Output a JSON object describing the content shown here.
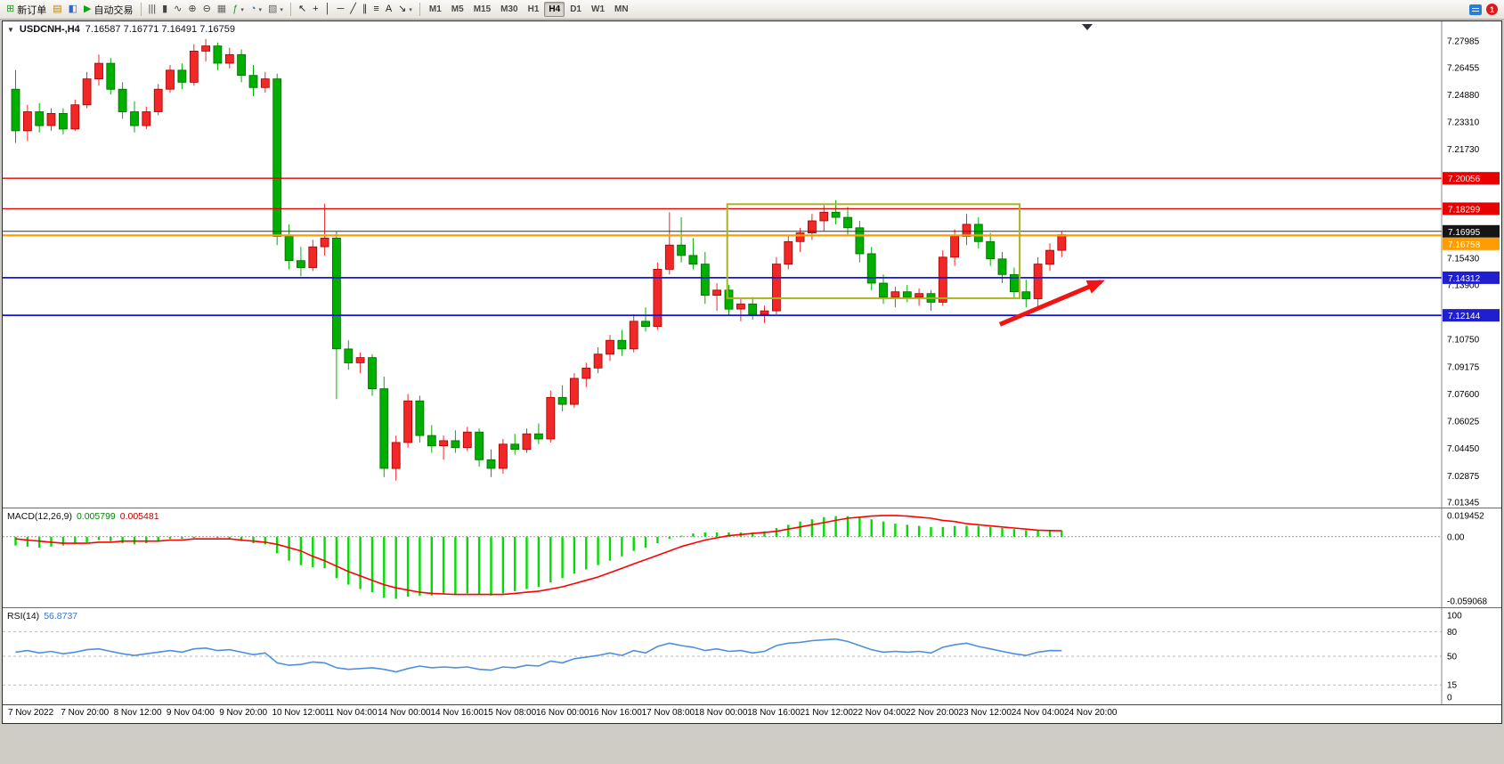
{
  "toolbar": {
    "dropdown_glyph": "▾",
    "buttons_left": [
      {
        "name": "new-order-button",
        "glyph": "⊞",
        "glyph_color": "#1f9d1f",
        "label": "新订单"
      },
      {
        "name": "market-watch-button",
        "glyph": "▤",
        "glyph_color": "#b8860b"
      },
      {
        "name": "data-window-button",
        "glyph": "◧",
        "glyph_color": "#2f66c4"
      },
      {
        "name": "autotrading-button",
        "glyph": "▶",
        "glyph_color": "#17a017",
        "label": "自动交易"
      }
    ],
    "chart_buttons": [
      {
        "name": "bar-chart-button",
        "glyph": "|||",
        "glyph_color": "#444"
      },
      {
        "name": "candlestick-chart-button",
        "glyph": "▮",
        "glyph_color": "#444"
      },
      {
        "name": "line-chart-button",
        "glyph": "∿",
        "glyph_color": "#444"
      },
      {
        "name": "zoom-in-button",
        "glyph": "⊕",
        "glyph_color": "#444"
      },
      {
        "name": "zoom-out-button",
        "glyph": "⊖",
        "glyph_color": "#444"
      },
      {
        "name": "tile-windows-button",
        "glyph": "▦",
        "glyph_color": "#666"
      },
      {
        "name": "indicators-button",
        "glyph": "ƒ",
        "glyph_color": "#1f9d1f",
        "dropdown": true
      },
      {
        "name": "periods-button",
        "glyph": "◔",
        "glyph_color": "#2f66c4",
        "dropdown": true
      },
      {
        "name": "templates-button",
        "glyph": "▧",
        "glyph_color": "#666",
        "dropdown": true
      }
    ],
    "line_tool_buttons": [
      {
        "name": "cursor-button",
        "glyph": "↖",
        "glyph_color": "#222"
      },
      {
        "name": "crosshair-button",
        "glyph": "+",
        "glyph_color": "#222"
      },
      {
        "name": "vertical-line-button",
        "glyph": "│",
        "glyph_color": "#222"
      },
      {
        "name": "horizontal-line-button",
        "glyph": "─",
        "glyph_color": "#222"
      },
      {
        "name": "trendline-button",
        "glyph": "╱",
        "glyph_color": "#222"
      },
      {
        "name": "channel-button",
        "glyph": "∥",
        "glyph_color": "#222"
      },
      {
        "name": "fibonacci-button",
        "glyph": "≡",
        "glyph_color": "#222"
      },
      {
        "name": "text-button",
        "glyph": "A",
        "glyph_color": "#222"
      },
      {
        "name": "arrows-button",
        "glyph": "↘",
        "glyph_color": "#222",
        "dropdown": true
      }
    ],
    "timeframes": {
      "items": [
        "M1",
        "M5",
        "M15",
        "M30",
        "H1",
        "H4",
        "D1",
        "W1",
        "MN"
      ],
      "active": "H4"
    },
    "notifications": {
      "count": "1"
    }
  },
  "chart_data": {
    "type": "candlestick",
    "symbol": "USDCNH-",
    "timeframe": "H4",
    "title": {
      "collapse_icon": "▼",
      "symbol": "USDCNH-,H4",
      "ohlc": "7.16587 7.16771 7.16491 7.16759"
    },
    "colors": {
      "up": "#f22727",
      "up_dark": "#a30000",
      "down": "#00b000",
      "down_dark": "#006a00",
      "macd_hist": "#00dd00",
      "macd_signal": "#ff0000",
      "rsi": "#4f8fdd"
    },
    "price_axis_labels": [
      7.27985,
      7.26455,
      7.2488,
      7.2331,
      7.2173,
      7.1543,
      7.139,
      7.1075,
      7.09175,
      7.076,
      7.06025,
      7.0445,
      7.02875,
      7.01345
    ],
    "candles": [
      [
        7.252,
        7.263,
        7.221,
        7.228
      ],
      [
        7.228,
        7.243,
        7.222,
        7.239
      ],
      [
        7.239,
        7.244,
        7.227,
        7.231
      ],
      [
        7.231,
        7.241,
        7.228,
        7.238
      ],
      [
        7.238,
        7.241,
        7.226,
        7.229
      ],
      [
        7.229,
        7.246,
        7.228,
        7.243
      ],
      [
        7.243,
        7.262,
        7.241,
        7.258
      ],
      [
        7.258,
        7.272,
        7.254,
        7.267
      ],
      [
        7.267,
        7.27,
        7.249,
        7.252
      ],
      [
        7.252,
        7.256,
        7.235,
        7.239
      ],
      [
        7.239,
        7.245,
        7.227,
        7.231
      ],
      [
        7.231,
        7.242,
        7.229,
        7.239
      ],
      [
        7.239,
        7.255,
        7.237,
        7.252
      ],
      [
        7.252,
        7.266,
        7.25,
        7.263
      ],
      [
        7.263,
        7.267,
        7.252,
        7.256
      ],
      [
        7.256,
        7.278,
        7.254,
        7.274
      ],
      [
        7.274,
        7.281,
        7.268,
        7.277
      ],
      [
        7.277,
        7.279,
        7.263,
        7.267
      ],
      [
        7.267,
        7.276,
        7.264,
        7.272
      ],
      [
        7.272,
        7.275,
        7.256,
        7.26
      ],
      [
        7.26,
        7.266,
        7.248,
        7.253
      ],
      [
        7.253,
        7.262,
        7.25,
        7.258
      ],
      [
        7.258,
        7.261,
        7.162,
        7.167
      ],
      [
        7.167,
        7.174,
        7.148,
        7.153
      ],
      [
        7.153,
        7.161,
        7.144,
        7.149
      ],
      [
        7.149,
        7.165,
        7.147,
        7.161
      ],
      [
        7.161,
        7.186,
        7.156,
        7.166
      ],
      [
        7.166,
        7.17,
        7.073,
        7.102
      ],
      [
        7.102,
        7.107,
        7.09,
        7.094
      ],
      [
        7.094,
        7.1,
        7.088,
        7.097
      ],
      [
        7.097,
        7.099,
        7.075,
        7.079
      ],
      [
        7.079,
        7.086,
        7.028,
        7.033
      ],
      [
        7.033,
        7.052,
        7.026,
        7.048
      ],
      [
        7.048,
        7.076,
        7.045,
        7.072
      ],
      [
        7.072,
        7.075,
        7.048,
        7.052
      ],
      [
        7.052,
        7.058,
        7.042,
        7.046
      ],
      [
        7.046,
        7.052,
        7.038,
        7.049
      ],
      [
        7.049,
        7.055,
        7.042,
        7.045
      ],
      [
        7.045,
        7.057,
        7.043,
        7.054
      ],
      [
        7.054,
        7.056,
        7.034,
        7.038
      ],
      [
        7.038,
        7.044,
        7.028,
        7.033
      ],
      [
        7.033,
        7.05,
        7.03,
        7.047
      ],
      [
        7.047,
        7.053,
        7.041,
        7.044
      ],
      [
        7.044,
        7.056,
        7.042,
        7.053
      ],
      [
        7.053,
        7.059,
        7.047,
        7.05
      ],
      [
        7.05,
        7.078,
        7.048,
        7.074
      ],
      [
        7.074,
        7.081,
        7.066,
        7.07
      ],
      [
        7.07,
        7.088,
        7.068,
        7.085
      ],
      [
        7.085,
        7.094,
        7.08,
        7.091
      ],
      [
        7.091,
        7.103,
        7.088,
        7.099
      ],
      [
        7.099,
        7.11,
        7.095,
        7.107
      ],
      [
        7.107,
        7.113,
        7.098,
        7.102
      ],
      [
        7.102,
        7.122,
        7.1,
        7.118
      ],
      [
        7.118,
        7.126,
        7.112,
        7.115
      ],
      [
        7.115,
        7.152,
        7.113,
        7.148
      ],
      [
        7.148,
        7.181,
        7.145,
        7.162
      ],
      [
        7.162,
        7.178,
        7.152,
        7.156
      ],
      [
        7.156,
        7.166,
        7.148,
        7.151
      ],
      [
        7.151,
        7.158,
        7.128,
        7.133
      ],
      [
        7.133,
        7.14,
        7.124,
        7.136
      ],
      [
        7.136,
        7.139,
        7.121,
        7.125
      ],
      [
        7.125,
        7.131,
        7.118,
        7.128
      ],
      [
        7.128,
        7.132,
        7.119,
        7.122
      ],
      [
        7.122,
        7.127,
        7.117,
        7.124
      ],
      [
        7.124,
        7.155,
        7.122,
        7.151
      ],
      [
        7.151,
        7.168,
        7.148,
        7.164
      ],
      [
        7.164,
        7.172,
        7.158,
        7.169
      ],
      [
        7.169,
        7.18,
        7.165,
        7.176
      ],
      [
        7.176,
        7.185,
        7.17,
        7.181
      ],
      [
        7.181,
        7.188,
        7.174,
        7.178
      ],
      [
        7.178,
        7.184,
        7.168,
        7.172
      ],
      [
        7.172,
        7.176,
        7.152,
        7.157
      ],
      [
        7.157,
        7.161,
        7.136,
        7.14
      ],
      [
        7.14,
        7.145,
        7.128,
        7.132
      ],
      [
        7.132,
        7.138,
        7.126,
        7.135
      ],
      [
        7.135,
        7.139,
        7.129,
        7.132
      ],
      [
        7.132,
        7.137,
        7.127,
        7.134
      ],
      [
        7.134,
        7.136,
        7.124,
        7.129
      ],
      [
        7.129,
        7.159,
        7.127,
        7.155
      ],
      [
        7.155,
        7.171,
        7.15,
        7.167
      ],
      [
        7.167,
        7.18,
        7.162,
        7.174
      ],
      [
        7.174,
        7.178,
        7.16,
        7.164
      ],
      [
        7.164,
        7.169,
        7.15,
        7.154
      ],
      [
        7.154,
        7.158,
        7.14,
        7.145
      ],
      [
        7.145,
        7.149,
        7.131,
        7.135
      ],
      [
        7.135,
        7.142,
        7.126,
        7.131
      ],
      [
        7.131,
        7.155,
        7.125,
        7.151
      ],
      [
        7.151,
        7.163,
        7.147,
        7.159
      ],
      [
        7.159,
        7.17,
        7.155,
        7.168
      ]
    ],
    "hlines": [
      {
        "price": 7.20056,
        "label": "7.20056",
        "color": "#e80000",
        "badge_bg": "#e80000",
        "width": 1.3
      },
      {
        "price": 7.18299,
        "label": "7.18299",
        "color": "#e80000",
        "badge_bg": "#e80000",
        "width": 1.3
      },
      {
        "price": 7.16995,
        "label": "7.16995",
        "color": "#303030",
        "badge_bg": "#151515",
        "width": 1
      },
      {
        "price": 7.16758,
        "label": "7.16758",
        "color": "#ff9d00",
        "badge_bg": "#ff9d00",
        "width": 2.2
      },
      {
        "price": 7.14312,
        "label": "7.14312",
        "color": "#1414e0",
        "badge_bg": "#1f1fd0",
        "width": 1.8
      },
      {
        "price": 7.12144,
        "label": "7.12144",
        "color": "#1414e0",
        "badge_bg": "#1f1fd0",
        "width": 1.8
      }
    ],
    "rectangle": {
      "bar_start": 60.2,
      "bar_end": 84.8,
      "price_top": 7.1856,
      "price_bottom": 7.1313,
      "color": "#a9b323"
    },
    "arrow": {
      "bar_start": 82.8,
      "price_start": 7.1162,
      "bar_end": 91.3,
      "price_end": 7.1408,
      "color": "#f01414"
    },
    "time_labels": [
      "7 Nov 2022",
      "7 Nov 20:00",
      "8 Nov 12:00",
      "9 Nov 04:00",
      "9 Nov 20:00",
      "10 Nov 12:00",
      "11 Nov 04:00",
      "14 Nov 00:00",
      "14 Nov 16:00",
      "15 Nov 08:00",
      "16 Nov 00:00",
      "16 Nov 16:00",
      "17 Nov 08:00",
      "18 Nov 00:00",
      "18 Nov 16:00",
      "21 Nov 12:00",
      "22 Nov 04:00",
      "22 Nov 20:00",
      "23 Nov 12:00",
      "24 Nov 04:00",
      "24 Nov 20:00"
    ],
    "macd": {
      "label": "MACD(12,26,9)",
      "value_main": "0.005799",
      "value_signal": "0.005481",
      "axis_labels": [
        {
          "v": 0.019452,
          "t": "0.019452"
        },
        {
          "v": 0,
          "t": "0.00"
        },
        {
          "v": -0.059068,
          "t": "-0.059068"
        }
      ],
      "histogram": [
        -0.008,
        -0.009,
        -0.01,
        -0.009,
        -0.008,
        -0.007,
        -0.005,
        -0.003,
        -0.004,
        -0.006,
        -0.007,
        -0.006,
        -0.004,
        -0.002,
        -0.002,
        -0.001,
        0.0,
        -0.001,
        -0.002,
        -0.004,
        -0.006,
        -0.007,
        -0.015,
        -0.022,
        -0.026,
        -0.028,
        -0.029,
        -0.038,
        -0.044,
        -0.048,
        -0.051,
        -0.056,
        -0.057,
        -0.055,
        -0.054,
        -0.054,
        -0.053,
        -0.053,
        -0.052,
        -0.053,
        -0.054,
        -0.052,
        -0.05,
        -0.048,
        -0.046,
        -0.042,
        -0.038,
        -0.034,
        -0.03,
        -0.026,
        -0.022,
        -0.018,
        -0.013,
        -0.01,
        -0.006,
        -0.002,
        0.001,
        0.003,
        0.004,
        0.004,
        0.004,
        0.004,
        0.004,
        0.005,
        0.008,
        0.011,
        0.014,
        0.016,
        0.018,
        0.019,
        0.019,
        0.018,
        0.016,
        0.014,
        0.012,
        0.011,
        0.01,
        0.009,
        0.009,
        0.01,
        0.01,
        0.01,
        0.009,
        0.008,
        0.007,
        0.006,
        0.006,
        0.006,
        0.0058
      ],
      "signal": [
        -0.002,
        -0.003,
        -0.004,
        -0.005,
        -0.006,
        -0.006,
        -0.006,
        -0.005,
        -0.005,
        -0.004,
        -0.004,
        -0.004,
        -0.004,
        -0.003,
        -0.003,
        -0.002,
        -0.002,
        -0.002,
        -0.002,
        -0.003,
        -0.004,
        -0.005,
        -0.007,
        -0.01,
        -0.013,
        -0.018,
        -0.022,
        -0.027,
        -0.032,
        -0.036,
        -0.04,
        -0.044,
        -0.047,
        -0.049,
        -0.051,
        -0.052,
        -0.0525,
        -0.053,
        -0.053,
        -0.053,
        -0.053,
        -0.053,
        -0.052,
        -0.051,
        -0.05,
        -0.048,
        -0.046,
        -0.043,
        -0.04,
        -0.037,
        -0.033,
        -0.029,
        -0.025,
        -0.021,
        -0.017,
        -0.013,
        -0.009,
        -0.006,
        -0.003,
        -0.001,
        0.001,
        0.002,
        0.003,
        0.004,
        0.005,
        0.007,
        0.009,
        0.011,
        0.013,
        0.015,
        0.017,
        0.018,
        0.019,
        0.0195,
        0.0195,
        0.019,
        0.018,
        0.017,
        0.015,
        0.014,
        0.012,
        0.011,
        0.01,
        0.009,
        0.008,
        0.007,
        0.006,
        0.0057,
        0.0055
      ]
    },
    "rsi": {
      "label": "RSI(14)",
      "value": "56.8737",
      "axis_labels": [
        {
          "v": 100,
          "t": "100"
        },
        {
          "v": 80,
          "t": "80"
        },
        {
          "v": 50,
          "t": "50"
        },
        {
          "v": 15,
          "t": "15"
        },
        {
          "v": 0,
          "t": "0"
        }
      ],
      "levels": [
        80,
        50,
        15
      ],
      "values": [
        55,
        57,
        54,
        56,
        53,
        55,
        58,
        59,
        56,
        53,
        51,
        53,
        55,
        57,
        55,
        59,
        60,
        57,
        58,
        55,
        52,
        54,
        42,
        39,
        40,
        43,
        42,
        36,
        34,
        35,
        36,
        34,
        31,
        35,
        38,
        36,
        37,
        36,
        37,
        34,
        33,
        37,
        36,
        39,
        38,
        44,
        42,
        47,
        49,
        51,
        54,
        51,
        57,
        54,
        62,
        66,
        63,
        61,
        57,
        59,
        56,
        57,
        54,
        56,
        63,
        66,
        67,
        69,
        70,
        71,
        68,
        63,
        58,
        55,
        56,
        55,
        56,
        54,
        61,
        64,
        66,
        62,
        59,
        56,
        53,
        51,
        55,
        57,
        56.8737
      ]
    }
  }
}
